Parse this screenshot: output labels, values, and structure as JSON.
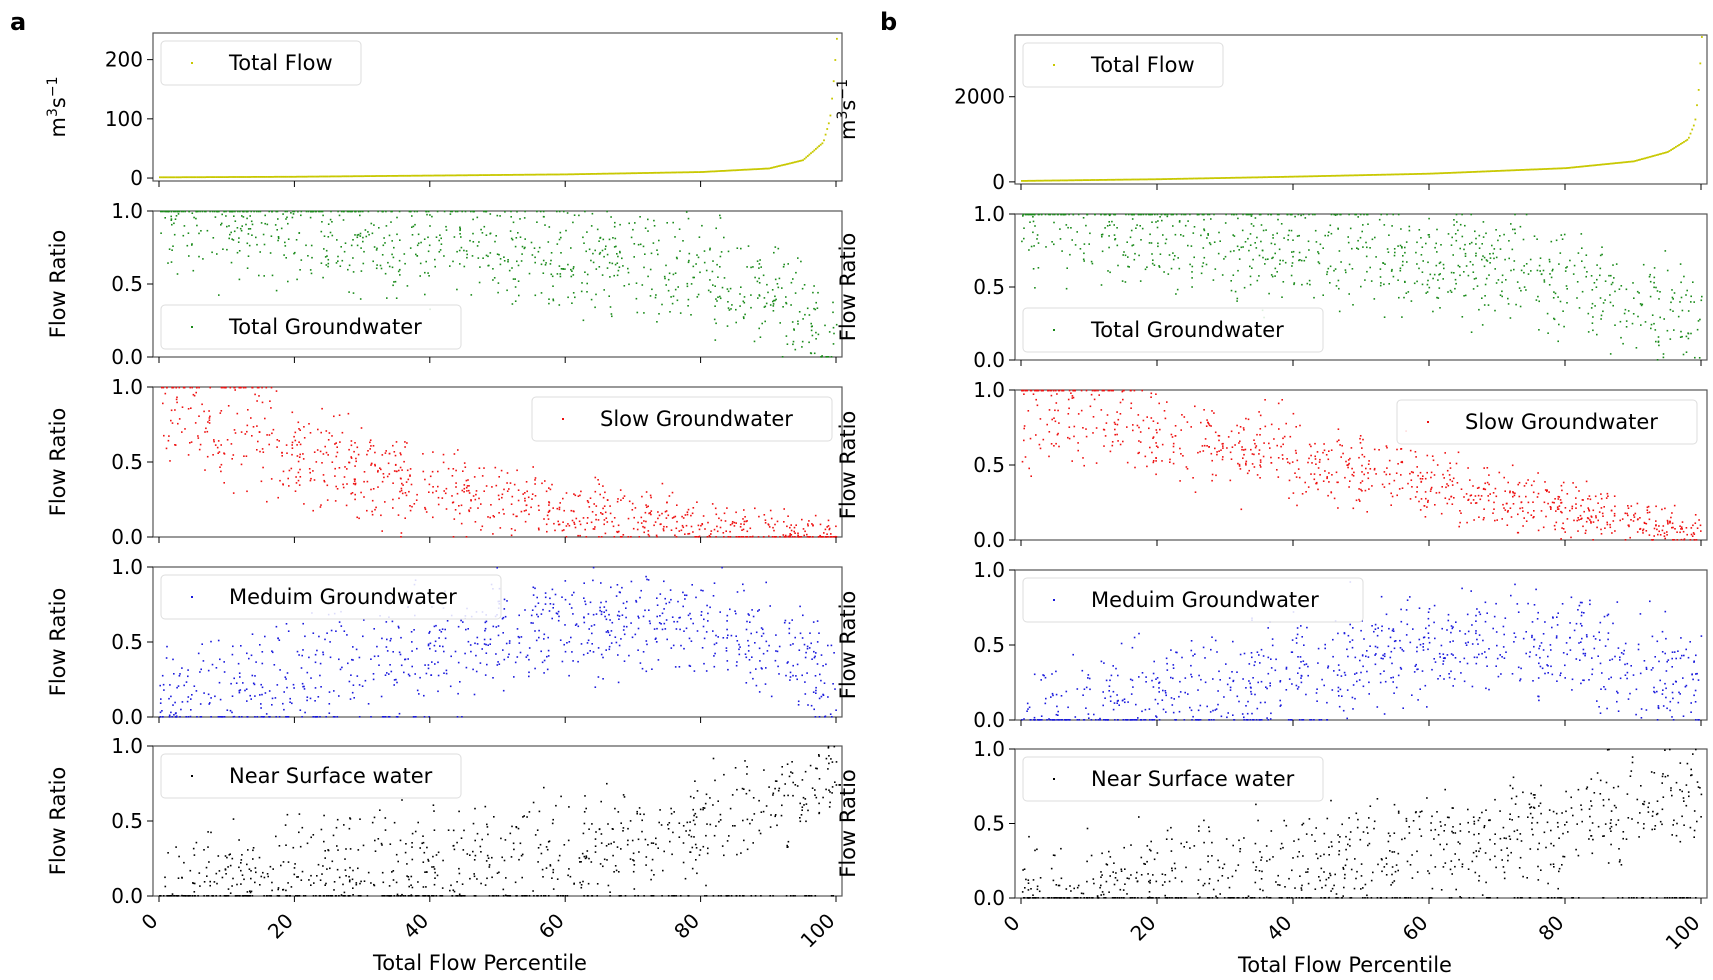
{
  "figure": {
    "panel_letters": [
      "a",
      "b"
    ],
    "xlabel": "Total Flow Percentile"
  },
  "chart_data": [
    {
      "panel": "a",
      "type": "scatter",
      "xlabel": "Total Flow Percentile",
      "xlim": [
        0,
        100
      ],
      "xticks": [
        "0",
        "20",
        "40",
        "60",
        "80",
        "100"
      ],
      "subplots": [
        {
          "key": "total_flow",
          "legend": "Total Flow",
          "ylabel": "m³s⁻¹",
          "ylabel_base": "m",
          "ylabel_sup1": "3",
          "ylabel_mid": "s",
          "ylabel_sup2": "−1",
          "color": "#c8c800",
          "ylim": [
            -5,
            245
          ],
          "yticks": [
            "0",
            "100",
            "200"
          ],
          "ytick_values": [
            0,
            100,
            200
          ],
          "legend_loc": "upper-left",
          "curve": {
            "pct": [
              0,
              20,
              40,
              60,
              80,
              90,
              95,
              98,
              99,
              99.5,
              100
            ],
            "val": [
              1,
              2,
              4,
              6,
              10,
              16,
              30,
              60,
              100,
              160,
              235
            ]
          }
        },
        {
          "key": "total_gw",
          "legend": "Total Groundwater",
          "ylabel": "Flow Ratio",
          "color": "#1a8a1a",
          "ylim": [
            0,
            1
          ],
          "yticks": [
            "0.0",
            "0.5",
            "1.0"
          ],
          "ytick_values": [
            0,
            0.5,
            1
          ],
          "legend_loc": "lower-left",
          "trend": {
            "pct": [
              0,
              20,
              40,
              60,
              80,
              90,
              95,
              100
            ],
            "center": [
              0.92,
              0.82,
              0.74,
              0.68,
              0.58,
              0.45,
              0.3,
              0.1
            ]
          }
        },
        {
          "key": "slow_gw",
          "legend": "Slow Groundwater",
          "ylabel": "Flow Ratio",
          "color": "#ee1111",
          "ylim": [
            0,
            1
          ],
          "yticks": [
            "0.0",
            "0.5",
            "1.0"
          ],
          "ytick_values": [
            0,
            0.5,
            1
          ],
          "legend_loc": "upper-right",
          "trend": {
            "pct": [
              0,
              10,
              20,
              40,
              60,
              80,
              100
            ],
            "center": [
              0.85,
              0.68,
              0.55,
              0.32,
              0.18,
              0.08,
              0.0
            ]
          }
        },
        {
          "key": "medium_gw",
          "legend": "Meduim Groundwater",
          "ylabel": "Flow Ratio",
          "color": "#1a1add",
          "ylim": [
            0,
            1
          ],
          "yticks": [
            "0.0",
            "0.5",
            "1.0"
          ],
          "ytick_values": [
            0,
            0.5,
            1
          ],
          "legend_loc": "upper-left",
          "trend": {
            "pct": [
              0,
              20,
              40,
              60,
              80,
              95,
              100
            ],
            "center": [
              0.08,
              0.3,
              0.5,
              0.62,
              0.62,
              0.4,
              0.15
            ]
          }
        },
        {
          "key": "near_surface",
          "legend": "Near Surface water",
          "ylabel": "Flow Ratio",
          "color": "#000000",
          "ylim": [
            0,
            1
          ],
          "yticks": [
            "0.0",
            "0.5",
            "1.0"
          ],
          "ytick_values": [
            0,
            0.5,
            1
          ],
          "legend_loc": "upper-left",
          "trend": {
            "pct": [
              0,
              20,
              40,
              60,
              80,
              95,
              100
            ],
            "center": [
              0.05,
              0.15,
              0.22,
              0.3,
              0.45,
              0.7,
              0.9
            ]
          }
        }
      ]
    },
    {
      "panel": "b",
      "type": "scatter",
      "xlabel": "Total Flow Percentile",
      "xlim": [
        0,
        100
      ],
      "xticks": [
        "0",
        "20",
        "40",
        "60",
        "80",
        "100"
      ],
      "subplots": [
        {
          "key": "total_flow",
          "legend": "Total Flow",
          "ylabel": "m³s⁻¹",
          "ylabel_base": "m",
          "ylabel_sup1": "3",
          "ylabel_mid": "s",
          "ylabel_sup2": "−1",
          "color": "#c8c800",
          "ylim": [
            -50,
            3450
          ],
          "yticks": [
            "0",
            "2000"
          ],
          "ytick_values": [
            0,
            2000
          ],
          "legend_loc": "upper-left",
          "curve": {
            "pct": [
              0,
              20,
              40,
              60,
              80,
              90,
              95,
              98,
              99,
              99.5,
              100
            ],
            "val": [
              20,
              60,
              120,
              190,
              320,
              480,
              700,
              1000,
              1400,
              2100,
              3400
            ]
          }
        },
        {
          "key": "total_gw",
          "legend": "Total Groundwater",
          "ylabel": "Flow Ratio",
          "color": "#1a8a1a",
          "ylim": [
            0,
            1
          ],
          "yticks": [
            "0.0",
            "0.5",
            "1.0"
          ],
          "ytick_values": [
            0,
            0.5,
            1
          ],
          "legend_loc": "lower-left",
          "trend": {
            "pct": [
              0,
              20,
              40,
              60,
              80,
              90,
              100
            ],
            "center": [
              0.95,
              0.85,
              0.75,
              0.68,
              0.55,
              0.42,
              0.25
            ]
          }
        },
        {
          "key": "slow_gw",
          "legend": "Slow Groundwater",
          "ylabel": "Flow Ratio",
          "color": "#ee1111",
          "ylim": [
            0,
            1
          ],
          "yticks": [
            "0.0",
            "0.5",
            "1.0"
          ],
          "ytick_values": [
            0,
            0.5,
            1
          ],
          "legend_loc": "upper-right",
          "trend": {
            "pct": [
              0,
              10,
              20,
              40,
              60,
              80,
              100
            ],
            "center": [
              0.9,
              0.8,
              0.72,
              0.55,
              0.38,
              0.2,
              0.04
            ]
          }
        },
        {
          "key": "medium_gw",
          "legend": "Meduim Groundwater",
          "ylabel": "Flow Ratio",
          "color": "#1a1add",
          "ylim": [
            0,
            1
          ],
          "yticks": [
            "0.0",
            "0.5",
            "1.0"
          ],
          "ytick_values": [
            0,
            0.5,
            1
          ],
          "legend_loc": "upper-left",
          "trend": {
            "pct": [
              0,
              20,
              40,
              60,
              80,
              100
            ],
            "center": [
              0.05,
              0.18,
              0.35,
              0.5,
              0.5,
              0.25
            ]
          }
        },
        {
          "key": "near_surface",
          "legend": "Near Surface water",
          "ylabel": "Flow Ratio",
          "color": "#000000",
          "ylim": [
            0,
            1
          ],
          "yticks": [
            "0.0",
            "0.5",
            "1.0"
          ],
          "ytick_values": [
            0,
            0.5,
            1
          ],
          "legend_loc": "upper-left",
          "trend": {
            "pct": [
              0,
              20,
              40,
              60,
              80,
              100
            ],
            "center": [
              0.03,
              0.1,
              0.2,
              0.35,
              0.5,
              0.72
            ]
          }
        }
      ]
    }
  ]
}
